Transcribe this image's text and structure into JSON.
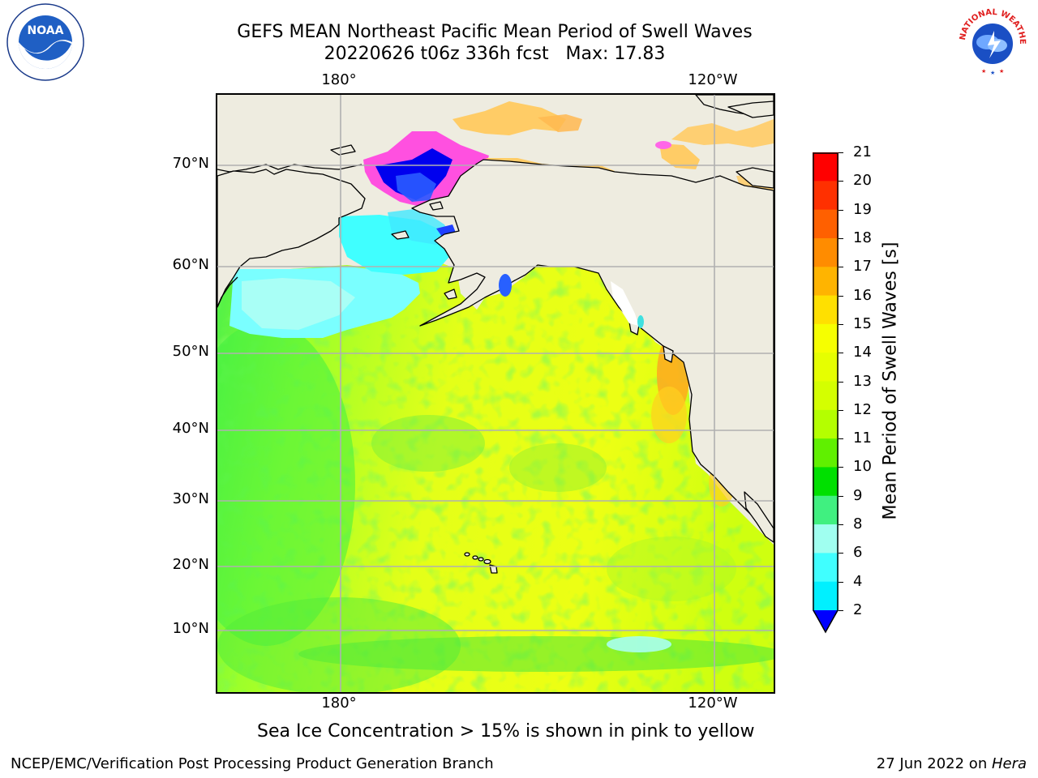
{
  "title": {
    "line1": "GEFS MEAN Northeast Pacific Mean Period of Swell Waves",
    "line2": "20220626 t06z 336h fcst   Max: 17.83"
  },
  "logos": {
    "left": {
      "text": "NOAA",
      "icon": "noaa-logo-icon",
      "ring_text": "NATIONAL OCEANIC AND ATMOSPHERIC ADMINISTRATION · U.S. DEPARTMENT OF COMMERCE"
    },
    "right": {
      "icon": "nws-logo-icon",
      "ring_text": "NATIONAL WEATHER SERVICE"
    }
  },
  "map": {
    "lon_labels_top": [
      "180°",
      "120°W"
    ],
    "lon_labels_bottom": [
      "180°",
      "120°W"
    ],
    "lat_labels": [
      "70°N",
      "60°N",
      "50°N",
      "40°N",
      "30°N",
      "20°N",
      "10°N"
    ],
    "land_color": "#eeece0",
    "grid_color": "#b0b0b0"
  },
  "colorbar": {
    "label": "Mean Period of Swell Waves [s]",
    "ticks": [
      "21",
      "20",
      "19",
      "18",
      "17",
      "16",
      "15",
      "14",
      "13",
      "12",
      "11",
      "10",
      "9",
      "8",
      "6",
      "4",
      "2"
    ],
    "colors_top_to_bottom": [
      "#ff0000",
      "#ff3000",
      "#ff6000",
      "#ff8c00",
      "#ffb400",
      "#ffe000",
      "#f6ff00",
      "#e6ff00",
      "#d4ff00",
      "#b4ff00",
      "#60f000",
      "#00e000",
      "#40f080",
      "#a0fff0",
      "#40ffff",
      "#00f0ff",
      "#00ddff",
      "#0070ff"
    ],
    "extend_color": "#0000ff"
  },
  "subtitle": "Sea Ice Concentration > 15% is shown in pink to yellow",
  "footer": {
    "left": "NCEP/EMC/Verification Post Processing Product Generation Branch",
    "right_date": "27 Jun 2022 on ",
    "right_host": "Hera"
  }
}
